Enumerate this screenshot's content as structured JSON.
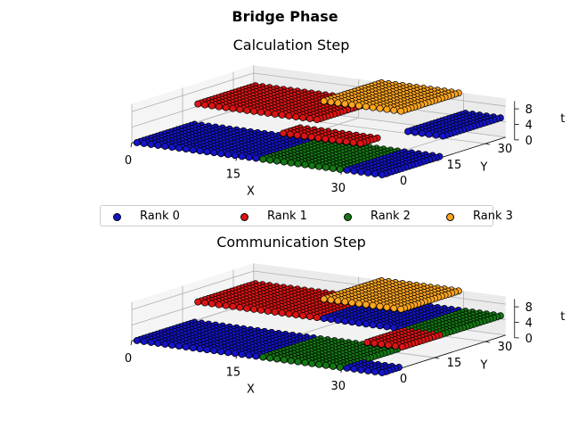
{
  "figure_title": "Bridge Phase",
  "legend": {
    "items": [
      {
        "label": "Rank 0",
        "color": "#1414c8"
      },
      {
        "label": "Rank 1",
        "color": "#dc1414"
      },
      {
        "label": "Rank 2",
        "color": "#147814"
      },
      {
        "label": "Rank 3",
        "color": "#ffa51e"
      }
    ]
  },
  "chart_data": [
    {
      "type": "scatter",
      "title": "Calculation Step",
      "xlabel": "X",
      "ylabel": "Y",
      "zlabel": "t",
      "xlim": [
        0,
        36
      ],
      "ylim": [
        0,
        36
      ],
      "zlim": [
        0,
        10
      ],
      "xticks": [
        "0",
        "15",
        "30"
      ],
      "yticks": [
        "0",
        "15",
        "30"
      ],
      "zticks": [
        "0",
        "4",
        "8"
      ],
      "grid": true,
      "projection": "3d",
      "series": [
        {
          "name": "Rank 0",
          "blocks": [
            {
              "x": [
                0,
                18
              ],
              "y": [
                0,
                18
              ],
              "t": 0
            },
            {
              "x": [
                18,
                36
              ],
              "y": [
                0,
                6
              ],
              "t": 0
            },
            {
              "x": [
                30,
                36
              ],
              "y": [
                6,
                18
              ],
              "t": 0
            },
            {
              "x": [
                30,
                36
              ],
              "y": [
                18,
                36
              ],
              "t": 5
            }
          ]
        },
        {
          "name": "Rank 1",
          "blocks": [
            {
              "x": [
                0,
                18
              ],
              "y": [
                18,
                36
              ],
              "t": 5
            },
            {
              "x": [
                18,
                30
              ],
              "y": [
                6,
                12
              ],
              "t": 5
            }
          ]
        },
        {
          "name": "Rank 2",
          "blocks": [
            {
              "x": [
                18,
                30
              ],
              "y": [
                0,
                18
              ],
              "t": 0
            }
          ]
        },
        {
          "name": "Rank 3",
          "blocks": [
            {
              "x": [
                18,
                30
              ],
              "y": [
                18,
                36
              ],
              "t": 10
            }
          ]
        }
      ]
    },
    {
      "type": "scatter",
      "title": "Communication Step",
      "xlabel": "X",
      "ylabel": "Y",
      "zlabel": "t",
      "xlim": [
        0,
        36
      ],
      "ylim": [
        0,
        36
      ],
      "zlim": [
        0,
        10
      ],
      "xticks": [
        "0",
        "15",
        "30"
      ],
      "yticks": [
        "0",
        "15",
        "30"
      ],
      "zticks": [
        "0",
        "4",
        "8"
      ],
      "grid": true,
      "projection": "3d",
      "series": [
        {
          "name": "Rank 0",
          "blocks": [
            {
              "x": [
                0,
                18
              ],
              "y": [
                0,
                18
              ],
              "t": 0
            },
            {
              "x": [
                18,
                36
              ],
              "y": [
                0,
                6
              ],
              "t": 0
            },
            {
              "x": [
                18,
                30
              ],
              "y": [
                18,
                36
              ],
              "t": 5
            }
          ]
        },
        {
          "name": "Rank 1",
          "blocks": [
            {
              "x": [
                0,
                18
              ],
              "y": [
                18,
                36
              ],
              "t": 5
            },
            {
              "x": [
                30,
                36
              ],
              "y": [
                6,
                18
              ],
              "t": 5
            }
          ]
        },
        {
          "name": "Rank 2",
          "blocks": [
            {
              "x": [
                18,
                30
              ],
              "y": [
                0,
                18
              ],
              "t": 0
            },
            {
              "x": [
                30,
                36
              ],
              "y": [
                18,
                36
              ],
              "t": 5
            }
          ]
        },
        {
          "name": "Rank 3",
          "blocks": [
            {
              "x": [
                18,
                30
              ],
              "y": [
                18,
                36
              ],
              "t": 10
            }
          ]
        }
      ]
    }
  ]
}
